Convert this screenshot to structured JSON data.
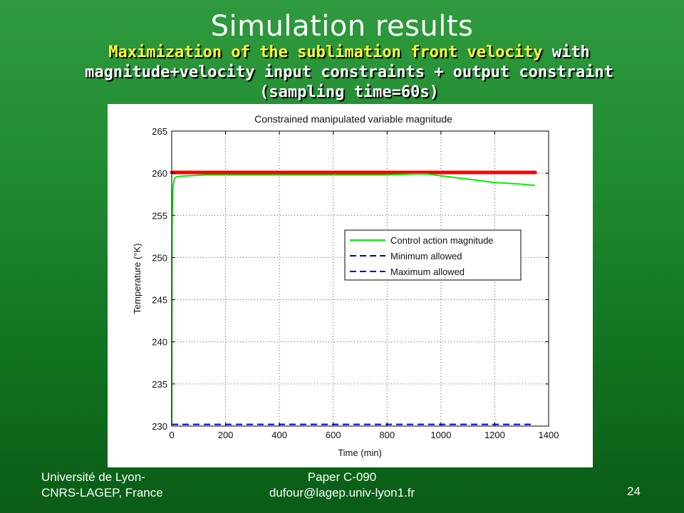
{
  "slide": {
    "title": "Simulation results",
    "subtitle_highlight": "Maximization of the sublimation front velocity",
    "subtitle_rest": " with magnitude+velocity input constraints + output constraint (sampling time=60s)",
    "footer_left_line1": "Université de Lyon-",
    "footer_left_line2": "CNRS-LAGEP, France",
    "footer_center_line1": "Paper C-090",
    "footer_center_line2": "dufour@lagep.univ-lyon1.fr",
    "page_number": "24"
  },
  "colors": {
    "background": "#1f8a2e",
    "subtitle_highlight": "#ffff33",
    "control_action": "#00ee00",
    "allowed_limits": "#0000cc",
    "max_overlay": "#ff0000"
  },
  "chart_data": {
    "type": "line",
    "title": "Constrained manipulated variable magnitude",
    "xlabel": "Time (min)",
    "ylabel": "Temperature (°K)",
    "xlim": [
      0,
      1400
    ],
    "ylim": [
      230,
      265
    ],
    "xticks": [
      0,
      200,
      400,
      600,
      800,
      1000,
      1200,
      1400
    ],
    "yticks": [
      230,
      235,
      240,
      245,
      250,
      255,
      260,
      265
    ],
    "grid": true,
    "legend_position": "right",
    "series": [
      {
        "name": "Control action magnitude",
        "style": "solid",
        "color": "#00ee00",
        "x": [
          0,
          1,
          3,
          5,
          10,
          20,
          60,
          120,
          200,
          400,
          600,
          800,
          900,
          950,
          1000,
          1050,
          1100,
          1150,
          1200,
          1250,
          1300,
          1350
        ],
        "y": [
          230,
          254,
          257,
          258.5,
          259.4,
          259.6,
          259.7,
          259.8,
          259.8,
          259.8,
          259.8,
          259.8,
          259.9,
          259.9,
          259.7,
          259.5,
          259.3,
          259.1,
          258.9,
          258.8,
          258.7,
          258.55
        ]
      },
      {
        "name": "Minimum allowed",
        "style": "dashed",
        "color": "#0000cc",
        "x": [
          0,
          1350
        ],
        "y": [
          230.2,
          230.2
        ]
      },
      {
        "name": "Maximum allowed",
        "style": "dashed",
        "color": "#0000cc",
        "x": [
          0,
          1350
        ],
        "y": [
          260.1,
          260.1
        ]
      }
    ],
    "overlay": {
      "color": "#ff0000",
      "x": [
        0,
        1350
      ],
      "y": [
        260.1,
        260.1
      ]
    }
  }
}
